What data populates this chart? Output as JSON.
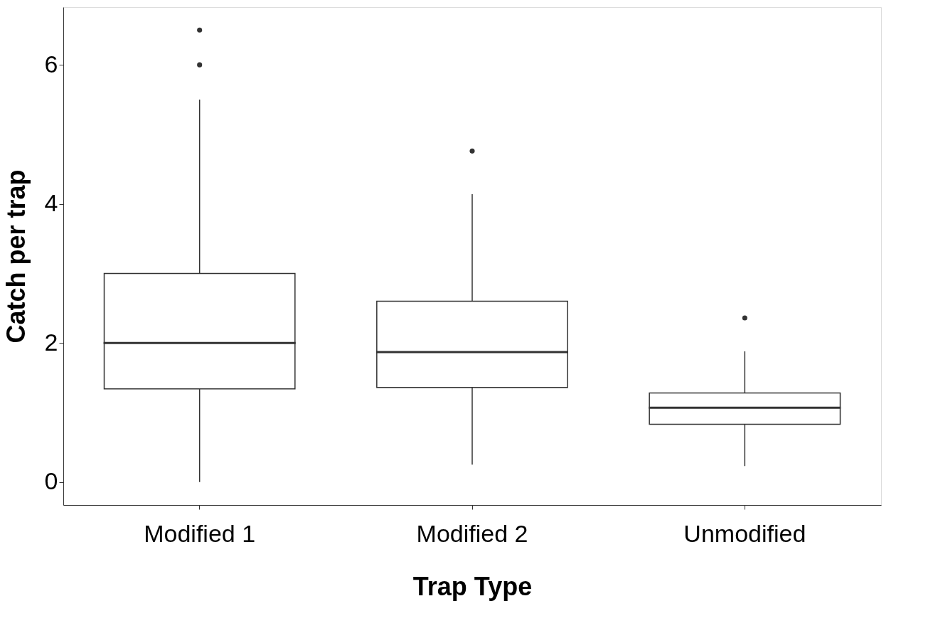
{
  "chart_data": {
    "type": "box",
    "xlabel": "Trap Type",
    "ylabel": "Catch per trap",
    "categories": [
      "Modified 1",
      "Modified 2",
      "Unmodified"
    ],
    "boxes": [
      {
        "low": 0,
        "q1": 1.34,
        "median": 2.0,
        "q3": 3.0,
        "high": 5.5,
        "outliers": [
          6.0,
          6.5
        ]
      },
      {
        "low": 0.25,
        "q1": 1.36,
        "median": 1.87,
        "q3": 2.6,
        "high": 4.14,
        "outliers": [
          4.76
        ]
      },
      {
        "low": 0.23,
        "q1": 0.83,
        "median": 1.07,
        "q3": 1.28,
        "high": 1.88,
        "outliers": [
          2.36
        ]
      }
    ],
    "ylim": [
      -0.33,
      6.83
    ],
    "yticks": [
      0,
      2,
      4,
      6
    ]
  }
}
